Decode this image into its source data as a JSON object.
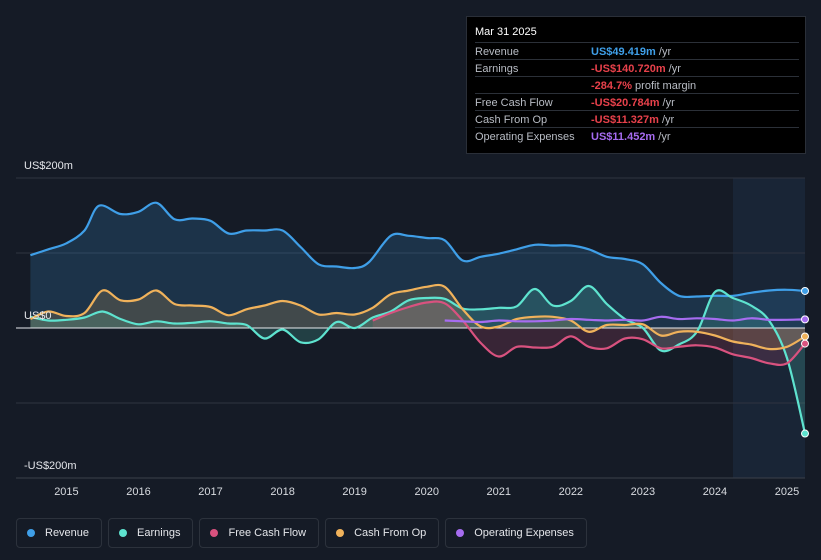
{
  "tooltip": {
    "date": "Mar 31 2025",
    "rows": [
      {
        "label": "Revenue",
        "value": "US$49.419m",
        "unit": "/yr",
        "color": "#3f9fe8"
      },
      {
        "label": "Earnings",
        "value": "-US$140.720m",
        "unit": "/yr",
        "color": "#e8414b"
      },
      {
        "label": "",
        "value": "-284.7%",
        "unit": "profit margin",
        "color": "#e8414b"
      },
      {
        "label": "Free Cash Flow",
        "value": "-US$20.784m",
        "unit": "/yr",
        "color": "#e8414b"
      },
      {
        "label": "Cash From Op",
        "value": "-US$11.327m",
        "unit": "/yr",
        "color": "#e8414b"
      },
      {
        "label": "Operating Expenses",
        "value": "US$11.452m",
        "unit": "/yr",
        "color": "#a66cf0"
      }
    ]
  },
  "axis": {
    "top_label": "US$200m",
    "zero_label": "US$0",
    "bottom_label": "-US$200m"
  },
  "legend": [
    {
      "label": "Revenue",
      "color": "#3f9fe8"
    },
    {
      "label": "Earnings",
      "color": "#5ee3cf"
    },
    {
      "label": "Free Cash Flow",
      "color": "#d9527f"
    },
    {
      "label": "Cash From Op",
      "color": "#f0b25b"
    },
    {
      "label": "Operating Expenses",
      "color": "#a66cf0"
    }
  ],
  "chart_data": {
    "type": "area",
    "title": "",
    "xlabel": "",
    "ylabel": "US$",
    "ylim": [
      -200,
      200
    ],
    "xlim": [
      2014.3,
      2025.25
    ],
    "x_ticks": [
      "2015",
      "2016",
      "2017",
      "2018",
      "2019",
      "2020",
      "2021",
      "2022",
      "2023",
      "2024",
      "2025"
    ],
    "forecast_start": 2024.25,
    "series": [
      {
        "name": "Revenue",
        "color": "#3f9fe8",
        "fill": true,
        "points": [
          [
            2014.5,
            97
          ],
          [
            2014.75,
            105
          ],
          [
            2015.0,
            113
          ],
          [
            2015.25,
            130
          ],
          [
            2015.45,
            163
          ],
          [
            2015.75,
            152
          ],
          [
            2016.0,
            155
          ],
          [
            2016.25,
            167
          ],
          [
            2016.5,
            145
          ],
          [
            2016.75,
            146
          ],
          [
            2017.0,
            143
          ],
          [
            2017.25,
            126
          ],
          [
            2017.5,
            130
          ],
          [
            2017.75,
            130
          ],
          [
            2018.0,
            130
          ],
          [
            2018.25,
            108
          ],
          [
            2018.5,
            85
          ],
          [
            2018.75,
            82
          ],
          [
            2019.0,
            80
          ],
          [
            2019.2,
            88
          ],
          [
            2019.5,
            123
          ],
          [
            2019.75,
            123
          ],
          [
            2020.0,
            120
          ],
          [
            2020.25,
            117
          ],
          [
            2020.5,
            90
          ],
          [
            2020.75,
            95
          ],
          [
            2021.0,
            99
          ],
          [
            2021.25,
            105
          ],
          [
            2021.5,
            111
          ],
          [
            2021.75,
            110
          ],
          [
            2022.0,
            110
          ],
          [
            2022.25,
            105
          ],
          [
            2022.5,
            95
          ],
          [
            2022.75,
            92
          ],
          [
            2023.0,
            85
          ],
          [
            2023.25,
            60
          ],
          [
            2023.5,
            43
          ],
          [
            2023.75,
            42
          ],
          [
            2024.0,
            43
          ],
          [
            2024.25,
            43
          ],
          [
            2024.5,
            47
          ],
          [
            2024.75,
            50
          ],
          [
            2025.0,
            51
          ],
          [
            2025.25,
            49.4
          ]
        ]
      },
      {
        "name": "Earnings",
        "color": "#5ee3cf",
        "fill": true,
        "points": [
          [
            2014.5,
            15
          ],
          [
            2014.75,
            10
          ],
          [
            2015.0,
            11
          ],
          [
            2015.25,
            14
          ],
          [
            2015.5,
            22
          ],
          [
            2015.75,
            12
          ],
          [
            2016.0,
            5
          ],
          [
            2016.25,
            9
          ],
          [
            2016.5,
            6
          ],
          [
            2016.75,
            7
          ],
          [
            2017.0,
            9
          ],
          [
            2017.25,
            6
          ],
          [
            2017.5,
            4
          ],
          [
            2017.75,
            -14
          ],
          [
            2018.0,
            -2
          ],
          [
            2018.25,
            -19
          ],
          [
            2018.5,
            -15
          ],
          [
            2018.75,
            8
          ],
          [
            2019.0,
            0
          ],
          [
            2019.25,
            14
          ],
          [
            2019.5,
            22
          ],
          [
            2019.75,
            37
          ],
          [
            2020.0,
            40
          ],
          [
            2020.25,
            39
          ],
          [
            2020.5,
            26
          ],
          [
            2020.75,
            25
          ],
          [
            2021.0,
            27
          ],
          [
            2021.25,
            29
          ],
          [
            2021.5,
            52
          ],
          [
            2021.75,
            30
          ],
          [
            2022.0,
            36
          ],
          [
            2022.25,
            56
          ],
          [
            2022.5,
            32
          ],
          [
            2022.75,
            12
          ],
          [
            2023.0,
            0
          ],
          [
            2023.25,
            -30
          ],
          [
            2023.5,
            -22
          ],
          [
            2023.75,
            -5
          ],
          [
            2024.0,
            48
          ],
          [
            2024.25,
            40
          ],
          [
            2024.5,
            30
          ],
          [
            2024.75,
            10
          ],
          [
            2025.0,
            -40
          ],
          [
            2025.25,
            -140.7
          ]
        ]
      },
      {
        "name": "Free Cash Flow",
        "color": "#d9527f",
        "fill": true,
        "points": [
          [
            2019.25,
            10
          ],
          [
            2019.5,
            20
          ],
          [
            2019.75,
            28
          ],
          [
            2020.0,
            34
          ],
          [
            2020.25,
            33
          ],
          [
            2020.5,
            10
          ],
          [
            2020.75,
            -20
          ],
          [
            2021.0,
            -38
          ],
          [
            2021.25,
            -25
          ],
          [
            2021.5,
            -26
          ],
          [
            2021.75,
            -25
          ],
          [
            2022.0,
            -11
          ],
          [
            2022.25,
            -25
          ],
          [
            2022.5,
            -27
          ],
          [
            2022.75,
            -14
          ],
          [
            2023.0,
            -15
          ],
          [
            2023.25,
            -27
          ],
          [
            2023.5,
            -25
          ],
          [
            2023.75,
            -23
          ],
          [
            2024.0,
            -26
          ],
          [
            2024.25,
            -35
          ],
          [
            2024.5,
            -40
          ],
          [
            2024.75,
            -47
          ],
          [
            2025.0,
            -47
          ],
          [
            2025.25,
            -20.8
          ]
        ]
      },
      {
        "name": "Cash From Op",
        "color": "#f0b25b",
        "fill": true,
        "points": [
          [
            2014.5,
            12
          ],
          [
            2014.75,
            22
          ],
          [
            2015.0,
            16
          ],
          [
            2015.25,
            20
          ],
          [
            2015.5,
            50
          ],
          [
            2015.75,
            37
          ],
          [
            2016.0,
            38
          ],
          [
            2016.25,
            50
          ],
          [
            2016.5,
            32
          ],
          [
            2016.75,
            30
          ],
          [
            2017.0,
            28
          ],
          [
            2017.25,
            17
          ],
          [
            2017.5,
            25
          ],
          [
            2017.75,
            30
          ],
          [
            2018.0,
            36
          ],
          [
            2018.25,
            30
          ],
          [
            2018.5,
            18
          ],
          [
            2018.75,
            20
          ],
          [
            2019.0,
            18
          ],
          [
            2019.25,
            27
          ],
          [
            2019.5,
            45
          ],
          [
            2019.75,
            50
          ],
          [
            2020.0,
            55
          ],
          [
            2020.25,
            55
          ],
          [
            2020.5,
            25
          ],
          [
            2020.75,
            2
          ],
          [
            2021.0,
            2
          ],
          [
            2021.25,
            12
          ],
          [
            2021.5,
            15
          ],
          [
            2021.75,
            15
          ],
          [
            2022.0,
            10
          ],
          [
            2022.25,
            -5
          ],
          [
            2022.5,
            4
          ],
          [
            2022.75,
            4
          ],
          [
            2023.0,
            5
          ],
          [
            2023.25,
            -10
          ],
          [
            2023.5,
            -5
          ],
          [
            2023.75,
            -5
          ],
          [
            2024.0,
            -10
          ],
          [
            2024.25,
            -18
          ],
          [
            2024.5,
            -22
          ],
          [
            2024.75,
            -28
          ],
          [
            2025.0,
            -25
          ],
          [
            2025.25,
            -11.3
          ]
        ]
      },
      {
        "name": "Operating Expenses",
        "color": "#a66cf0",
        "fill": false,
        "points": [
          [
            2020.25,
            10
          ],
          [
            2020.5,
            9
          ],
          [
            2020.75,
            8
          ],
          [
            2021.0,
            10
          ],
          [
            2021.25,
            9
          ],
          [
            2021.5,
            9
          ],
          [
            2021.75,
            10
          ],
          [
            2022.0,
            12
          ],
          [
            2022.25,
            11
          ],
          [
            2022.5,
            10
          ],
          [
            2022.75,
            11
          ],
          [
            2023.0,
            10
          ],
          [
            2023.25,
            15
          ],
          [
            2023.5,
            12
          ],
          [
            2023.75,
            13
          ],
          [
            2024.0,
            12
          ],
          [
            2024.25,
            10
          ],
          [
            2024.5,
            13
          ],
          [
            2024.75,
            11
          ],
          [
            2025.0,
            11
          ],
          [
            2025.25,
            11.5
          ]
        ]
      }
    ]
  }
}
